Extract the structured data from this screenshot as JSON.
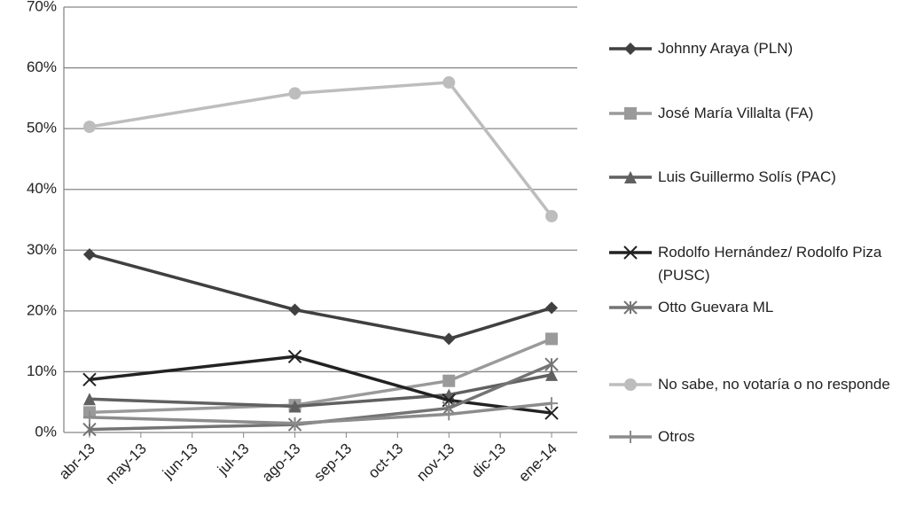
{
  "chart_data": {
    "type": "line",
    "x": [
      0,
      4,
      7,
      9
    ],
    "xlim": [
      -0.5,
      9.5
    ],
    "xticks": [
      {
        "value": 0,
        "label": "abr-13"
      },
      {
        "value": 1,
        "label": "may-13"
      },
      {
        "value": 2,
        "label": "jun-13"
      },
      {
        "value": 3,
        "label": "jul-13"
      },
      {
        "value": 4,
        "label": "ago-13"
      },
      {
        "value": 5,
        "label": "sep-13"
      },
      {
        "value": 6,
        "label": "oct-13"
      },
      {
        "value": 7,
        "label": "nov-13"
      },
      {
        "value": 8,
        "label": "dic-13"
      },
      {
        "value": 9,
        "label": "ene-14"
      }
    ],
    "ylim": [
      0,
      70
    ],
    "yticks": [
      {
        "value": 0,
        "label": "0%"
      },
      {
        "value": 10,
        "label": "10%"
      },
      {
        "value": 20,
        "label": "20%"
      },
      {
        "value": 30,
        "label": "30%"
      },
      {
        "value": 40,
        "label": "40%"
      },
      {
        "value": 50,
        "label": "50%"
      },
      {
        "value": 60,
        "label": "60%"
      },
      {
        "value": 70,
        "label": "70%"
      }
    ],
    "grid": true,
    "legend": "right",
    "series": [
      {
        "name": "Johnny Araya (PLN)",
        "color": "#404040",
        "marker": "diamond",
        "values": [
          29.3,
          20.2,
          15.4,
          20.5
        ]
      },
      {
        "name": "José María Villalta  (FA)",
        "color": "#9a9a9a",
        "marker": "square",
        "values": [
          3.3,
          4.5,
          8.5,
          15.4
        ]
      },
      {
        "name": "Luis Guillermo Solís (PAC)",
        "color": "#606060",
        "marker": "triangle",
        "values": [
          5.5,
          4.3,
          6.2,
          9.5
        ]
      },
      {
        "name": "Rodolfo Hernández/ Rodolfo Piza (PUSC)",
        "color": "#222222",
        "marker": "x",
        "values": [
          8.7,
          12.5,
          5.3,
          3.2
        ]
      },
      {
        "name": "Otto Guevara ML",
        "color": "#747474",
        "marker": "asterisk",
        "values": [
          0.5,
          1.3,
          4.0,
          11.2
        ]
      },
      {
        "name": "No sabe, no votaría o no responde",
        "color": "#bdbdbd",
        "marker": "circle",
        "values": [
          50.3,
          55.8,
          57.6,
          35.6
        ]
      },
      {
        "name": "Otros",
        "color": "#8c8c8c",
        "marker": "plus",
        "values": [
          2.5,
          1.5,
          3.0,
          4.8
        ]
      }
    ]
  }
}
